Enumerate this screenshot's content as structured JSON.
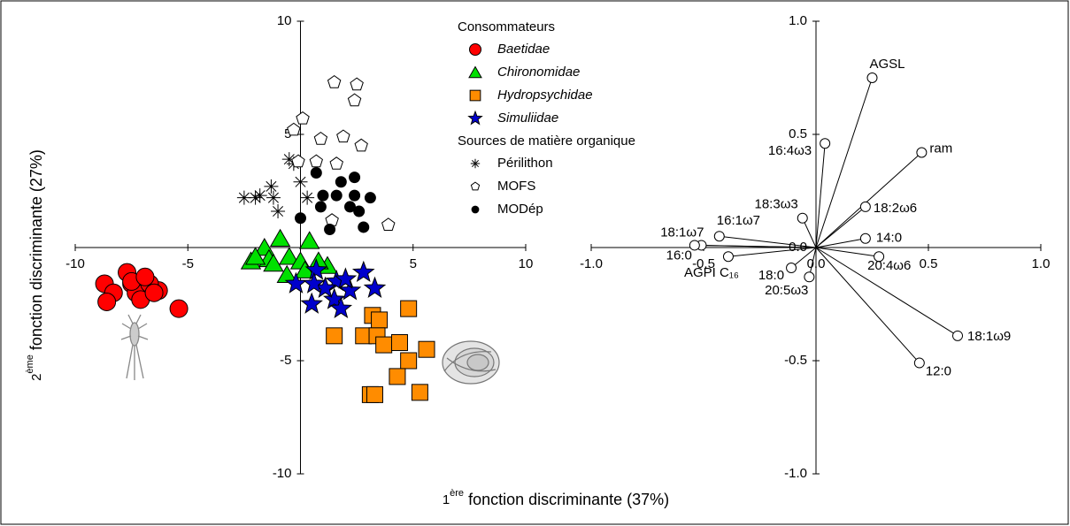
{
  "chart_data": [
    {
      "type": "scatter",
      "x_label": [
        "1",
        "ère",
        "fonction discriminante (37%)"
      ],
      "y_label": [
        "2",
        "ème",
        "fonction discriminante (27%)"
      ],
      "xlim": [
        -10,
        10
      ],
      "ylim": [
        -10,
        10
      ],
      "xticks": [
        -10,
        -5,
        5,
        10
      ],
      "yticks": [
        -10,
        -5,
        5,
        10
      ],
      "legend_titles": [
        "Consommateurs",
        "Sources de matière organique"
      ],
      "series": [
        {
          "name": "Baetidae",
          "italic": true,
          "marker": "circle",
          "color": "#ff0000",
          "x": [
            -8.7,
            -7.7,
            -7.5,
            -7.1,
            -8.3,
            -7.3,
            -6.3,
            -6.7,
            -8.6,
            -7.1,
            -5.4,
            -7.5,
            -6.5,
            -6.9
          ],
          "y": [
            -1.6,
            -1.1,
            -1.6,
            -1.8,
            -2.0,
            -2.0,
            -1.9,
            -1.6,
            -2.4,
            -2.3,
            -2.7,
            -1.5,
            -2.0,
            -1.3
          ]
        },
        {
          "name": "Chironomidae",
          "italic": true,
          "marker": "triangle",
          "color": "#00e000",
          "x": [
            -0.9,
            -1.6,
            -2.2,
            -1.4,
            -0.5,
            0.4,
            0.0,
            1.2,
            -0.6,
            -1.2,
            -2.0,
            0.8,
            0.2
          ],
          "y": [
            0.4,
            0.0,
            -0.6,
            -0.5,
            -0.4,
            0.3,
            -0.6,
            -0.8,
            -1.2,
            -0.7,
            -0.4,
            -0.6,
            -1.0
          ]
        },
        {
          "name": "Hydropsychidae",
          "italic": true,
          "marker": "square",
          "color": "#ff8c00",
          "x": [
            4.8,
            1.5,
            3.2,
            3.5,
            2.8,
            3.4,
            3.7,
            4.4,
            5.6,
            4.8,
            4.3,
            3.1,
            3.3,
            5.3
          ],
          "y": [
            -2.7,
            -3.9,
            -3.0,
            -3.2,
            -3.9,
            -3.9,
            -4.3,
            -4.2,
            -4.5,
            -5.0,
            -5.7,
            -6.5,
            -6.5,
            -6.4
          ]
        },
        {
          "name": "Simuliidae",
          "italic": true,
          "marker": "star",
          "color": "#0000cc",
          "x": [
            0.7,
            1.6,
            2.8,
            3.3,
            -0.2,
            0.5,
            1.5,
            1.8,
            2.2,
            1.1,
            2.0,
            0.6
          ],
          "y": [
            -1.0,
            -1.5,
            -1.1,
            -1.8,
            -1.6,
            -2.5,
            -2.3,
            -2.7,
            -1.9,
            -1.8,
            -1.4,
            -1.6
          ]
        },
        {
          "name": "Périlithon",
          "italic": false,
          "marker": "asterisk",
          "color": "#000000",
          "x": [
            -0.5,
            -2.5,
            -2.0,
            -1.8,
            -1.3,
            -1.2,
            -1.0,
            0.0,
            0.3,
            -0.3
          ],
          "y": [
            3.9,
            2.2,
            2.2,
            2.3,
            2.7,
            2.2,
            1.6,
            2.9,
            2.2,
            3.7
          ]
        },
        {
          "name": "MOFS",
          "italic": false,
          "marker": "pentagon",
          "color": "#ffffff",
          "x": [
            1.5,
            2.5,
            2.4,
            0.1,
            -0.3,
            1.9,
            0.9,
            2.7,
            -0.1,
            0.7,
            1.6,
            1.4,
            3.9
          ],
          "y": [
            7.3,
            7.2,
            6.5,
            5.7,
            5.2,
            4.9,
            4.8,
            4.5,
            3.8,
            3.8,
            3.7,
            1.2,
            1.0
          ]
        },
        {
          "name": "MODép",
          "italic": false,
          "marker": "dot",
          "color": "#000000",
          "x": [
            2.4,
            1.8,
            1.0,
            1.6,
            2.4,
            3.1,
            2.2,
            2.6,
            0.0,
            0.9,
            2.8,
            1.3,
            0.7
          ],
          "y": [
            3.1,
            2.9,
            2.3,
            2.3,
            2.3,
            2.2,
            1.8,
            1.6,
            1.3,
            1.8,
            0.9,
            0.8,
            3.3
          ]
        }
      ]
    },
    {
      "type": "biplot",
      "xlim": [
        -1,
        1
      ],
      "ylim": [
        -1,
        1
      ],
      "xticks": [
        {
          "value": -1,
          "label": "-1.0"
        },
        {
          "value": -0.5,
          "label": "-0.5"
        },
        {
          "value": 0,
          "label": "0.0"
        },
        {
          "value": 0.5,
          "label": "0.5"
        },
        {
          "value": 1,
          "label": "1.0"
        }
      ],
      "yticks": [
        {
          "value": -1,
          "label": "-1.0"
        },
        {
          "value": -0.5,
          "label": "-0.5"
        },
        {
          "value": 0,
          "label": "0.0"
        },
        {
          "value": 0.5,
          "label": "0.5"
        },
        {
          "value": 1,
          "label": "1.0"
        }
      ],
      "vectors": {
        "labels": [
          "AGSL",
          "16:4ω3",
          "ram",
          "18:2ω6",
          "18:3ω3",
          "16:1ω7",
          "14:0",
          "18:1ω7",
          "16:0",
          "AGPI C₁₆",
          "20:4ω6",
          "18:0",
          "20:5ω3",
          "18:1ω9",
          "12:0"
        ],
        "x": [
          0.25,
          0.04,
          0.47,
          0.22,
          -0.06,
          -0.43,
          0.22,
          -0.51,
          -0.54,
          -0.39,
          0.28,
          -0.11,
          -0.03,
          0.63,
          0.46
        ],
        "y": [
          0.75,
          0.46,
          0.42,
          0.18,
          0.13,
          0.05,
          0.04,
          0.01,
          0.01,
          -0.04,
          -0.04,
          -0.09,
          -0.13,
          -0.39,
          -0.51
        ]
      }
    }
  ]
}
